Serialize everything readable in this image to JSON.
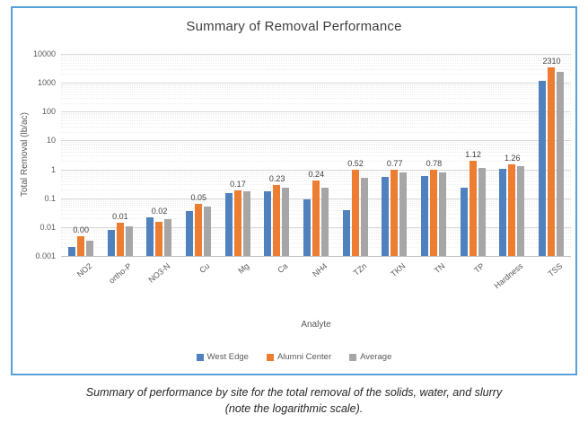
{
  "figure": {
    "caption_line1": "Summary of performance by site for the total removal of the solids, water, and slurry",
    "caption_line2": "(note the logarithmic scale)."
  },
  "chart_data": {
    "type": "bar",
    "title": "Summary of Removal Performance",
    "xlabel": "Analyte",
    "ylabel": "Total Removal (lb/ac)",
    "y_scale": "log",
    "ylim": [
      0.001,
      10000
    ],
    "y_ticks": [
      "10000",
      "1000",
      "100",
      "10",
      "1",
      "0.1",
      "0.01",
      "0.001"
    ],
    "grid": "major solid, minor dotted (log scale)",
    "legend_position": "bottom",
    "categories": [
      "NO2",
      "ortho-P",
      "NO3-N",
      "Cu",
      "Mg",
      "Ca",
      "NH4",
      "TZn",
      "TKN",
      "TN",
      "TP",
      "Hardness",
      "TSS"
    ],
    "series": [
      {
        "name": "West Edge",
        "color": "#4e81bd",
        "values": [
          0.002,
          0.008,
          0.022,
          0.035,
          0.15,
          0.18,
          0.09,
          0.04,
          0.55,
          0.57,
          0.24,
          1.02,
          1200
        ]
      },
      {
        "name": "Alumni Center",
        "color": "#ed7d31",
        "values": [
          0.005,
          0.014,
          0.015,
          0.065,
          0.19,
          0.28,
          0.4,
          1.0,
          0.99,
          0.99,
          2.0,
          1.5,
          3420
        ]
      },
      {
        "name": "Average",
        "color": "#a6a6a6",
        "values": [
          0.0035,
          0.011,
          0.0185,
          0.05,
          0.17,
          0.23,
          0.24,
          0.52,
          0.77,
          0.78,
          1.12,
          1.26,
          2310
        ]
      }
    ],
    "data_labels": {
      "series": "Average",
      "values": [
        "0.00",
        "0.01",
        "0.02",
        "0.05",
        "0.17",
        "0.23",
        "0.24",
        "0.52",
        "0.77",
        "0.78",
        "1.12",
        "1.26",
        "2310"
      ]
    }
  },
  "colors": {
    "frame_border": "#55a0d8",
    "title_text": "#404040",
    "axis_text": "#595959",
    "major_gridline": "#d9d9d9",
    "minor_gridline": "#ededed"
  }
}
